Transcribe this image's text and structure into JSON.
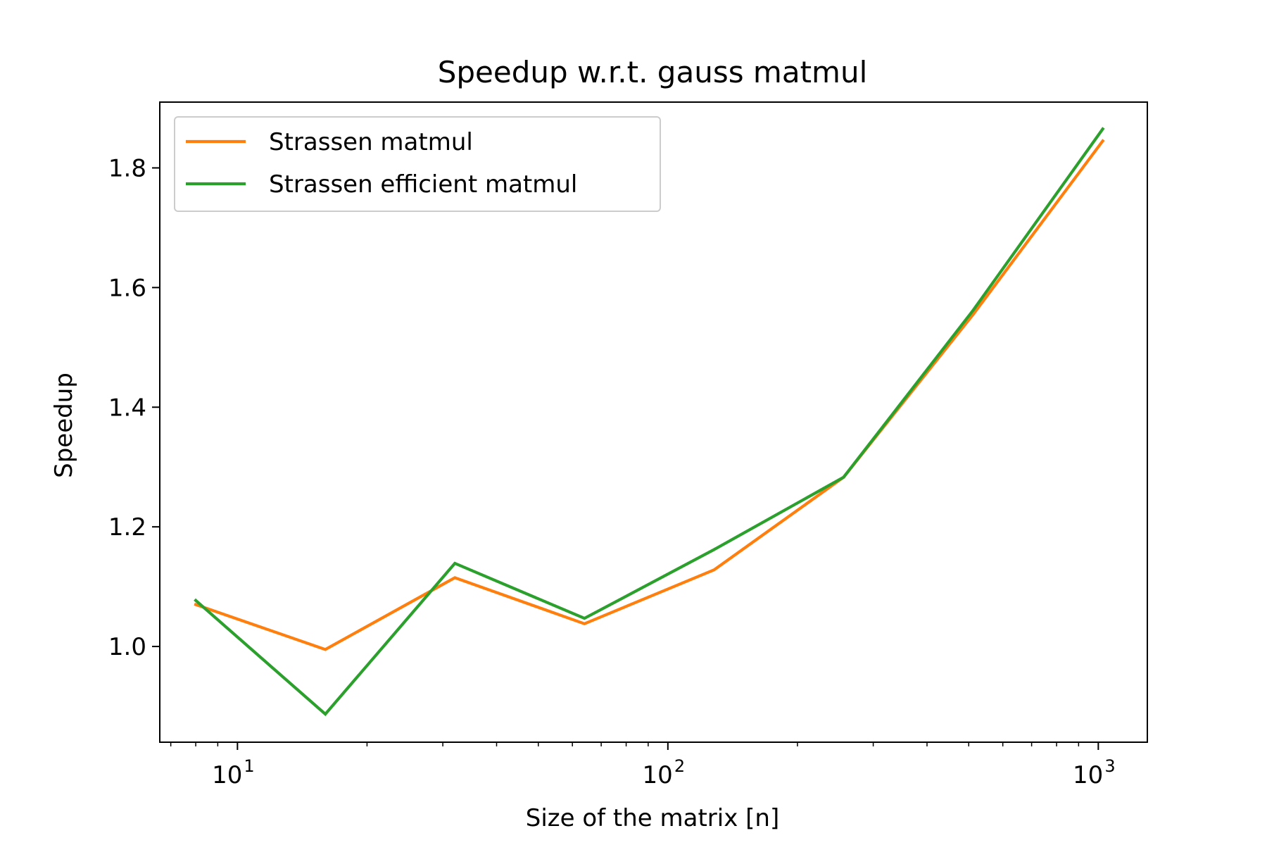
{
  "chart_data": {
    "type": "line",
    "title": "Speedup w.r.t. gauss matmul",
    "xlabel": "Size of the matrix [n]",
    "ylabel": "Speedup",
    "xscale": "log",
    "xlim": [
      6.6,
      1300
    ],
    "ylim": [
      0.84,
      1.91
    ],
    "x_ticks": [
      {
        "value": 10,
        "base": "10",
        "exp": "1"
      },
      {
        "value": 100,
        "base": "10",
        "exp": "2"
      },
      {
        "value": 1000,
        "base": "10",
        "exp": "3"
      }
    ],
    "y_ticks": [
      {
        "value": 1.0,
        "label": "1.0"
      },
      {
        "value": 1.2,
        "label": "1.2"
      },
      {
        "value": 1.4,
        "label": "1.4"
      },
      {
        "value": 1.6,
        "label": "1.6"
      },
      {
        "value": 1.8,
        "label": "1.8"
      }
    ],
    "x": [
      8,
      16,
      32,
      64,
      128,
      256,
      512,
      1024
    ],
    "series": [
      {
        "name": "Strassen matmul",
        "color": "#ff7f0e",
        "values": [
          1.07,
          0.995,
          1.115,
          1.038,
          1.128,
          1.283,
          1.555,
          1.845
        ]
      },
      {
        "name": "Strassen efficient matmul",
        "color": "#2ca02c",
        "values": [
          1.077,
          0.887,
          1.139,
          1.047,
          1.162,
          1.283,
          1.562,
          1.865
        ]
      }
    ],
    "grid": false,
    "legend_position": "upper left"
  }
}
